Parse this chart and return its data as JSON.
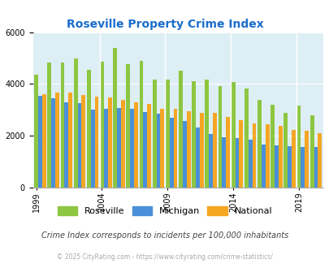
{
  "title": "Roseville Property Crime Index",
  "years": [
    1999,
    2000,
    2001,
    2002,
    2003,
    2004,
    2005,
    2006,
    2007,
    2008,
    2009,
    2010,
    2011,
    2012,
    2013,
    2014,
    2015,
    2016,
    2017,
    2018,
    2019,
    2020
  ],
  "roseville": [
    4350,
    4820,
    4820,
    4980,
    4550,
    4850,
    5380,
    4780,
    4900,
    4160,
    4170,
    4500,
    4100,
    4180,
    3920,
    4060,
    3830,
    3380,
    3200,
    2870,
    3180,
    2800
  ],
  "michigan": [
    3550,
    3450,
    3300,
    3250,
    3020,
    3050,
    3080,
    3050,
    2920,
    2840,
    2700,
    2580,
    2330,
    2060,
    1930,
    1900,
    1840,
    1650,
    1620,
    1590,
    1580,
    1580
  ],
  "national": [
    3600,
    3680,
    3660,
    3580,
    3520,
    3480,
    3380,
    3300,
    3220,
    3050,
    3050,
    2960,
    2890,
    2870,
    2740,
    2600,
    2490,
    2460,
    2370,
    2230,
    2190,
    2110
  ],
  "roseville_color": "#8dc641",
  "michigan_color": "#4a90d9",
  "national_color": "#f5a623",
  "bg_color": "#ddeef5",
  "ylim": [
    0,
    6000
  ],
  "yticks": [
    0,
    2000,
    4000,
    6000
  ],
  "xtick_years": [
    1999,
    2004,
    2009,
    2014,
    2019
  ],
  "subtitle": "Crime Index corresponds to incidents per 100,000 inhabitants",
  "footer": "© 2025 CityRating.com - https://www.cityrating.com/crime-statistics/",
  "title_color": "#1a6dcc",
  "subtitle_color": "#444444",
  "footer_color": "#aaaaaa"
}
